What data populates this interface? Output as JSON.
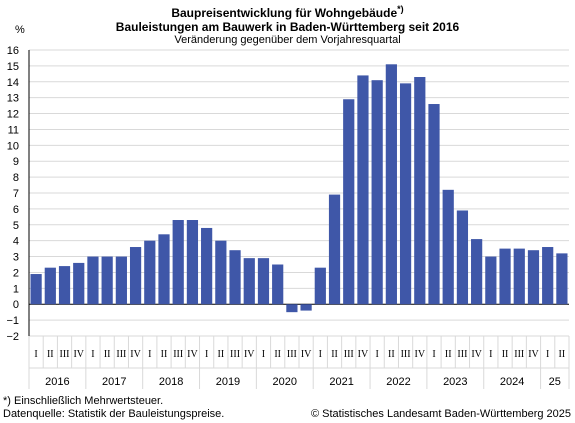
{
  "header": {
    "title": "Baupreisentwicklung für Wohngebäude",
    "title_marker": "*)",
    "subtitle": "Bauleistungen am Bauwerk in Baden-Württemberg seit 2016",
    "subsubtitle": "Veränderung gegenüber dem Vorjahresquartal"
  },
  "footer": {
    "note": "*) Einschließlich Mehrwertsteuer.",
    "source": "Datenquelle: Statistik der Bauleistungspreise.",
    "copyright": "© Statistisches Landesamt Baden-Württemberg 2025"
  },
  "colors": {
    "bar": "#3f57a8",
    "grid": "#d9d9d9",
    "axis": "#000000"
  },
  "chart_data": {
    "type": "bar",
    "ylabel": "%",
    "ylim": [
      -2,
      16
    ],
    "yticks": [
      -2,
      -1,
      0,
      1,
      2,
      3,
      4,
      5,
      6,
      7,
      8,
      9,
      10,
      11,
      12,
      13,
      14,
      15,
      16
    ],
    "grid": true,
    "quarter_labels": [
      "I",
      "II",
      "III",
      "IV",
      "I",
      "II",
      "III",
      "IV",
      "I",
      "II",
      "III",
      "IV",
      "I",
      "II",
      "III",
      "IV",
      "I",
      "II",
      "III",
      "IV",
      "I",
      "II",
      "III",
      "IV",
      "I",
      "II",
      "III",
      "IV",
      "I",
      "II",
      "III",
      "IV",
      "I",
      "II",
      "III",
      "IV",
      "I",
      "II"
    ],
    "years": [
      {
        "label": "2016",
        "count": 4
      },
      {
        "label": "2017",
        "count": 4
      },
      {
        "label": "2018",
        "count": 4
      },
      {
        "label": "2019",
        "count": 4
      },
      {
        "label": "2020",
        "count": 4
      },
      {
        "label": "2021",
        "count": 4
      },
      {
        "label": "2022",
        "count": 4
      },
      {
        "label": "2023",
        "count": 4
      },
      {
        "label": "2024",
        "count": 4
      },
      {
        "label": "25",
        "count": 2
      }
    ],
    "values": [
      1.9,
      2.3,
      2.4,
      2.6,
      3.0,
      3.0,
      3.0,
      3.6,
      4.0,
      4.4,
      5.3,
      5.3,
      4.8,
      4.0,
      3.4,
      2.9,
      2.9,
      2.5,
      -0.5,
      -0.4,
      2.3,
      6.9,
      12.9,
      14.4,
      14.1,
      15.1,
      13.9,
      14.3,
      12.6,
      7.2,
      5.9,
      4.1,
      3.0,
      3.5,
      3.5,
      3.4,
      3.6,
      3.2
    ]
  }
}
